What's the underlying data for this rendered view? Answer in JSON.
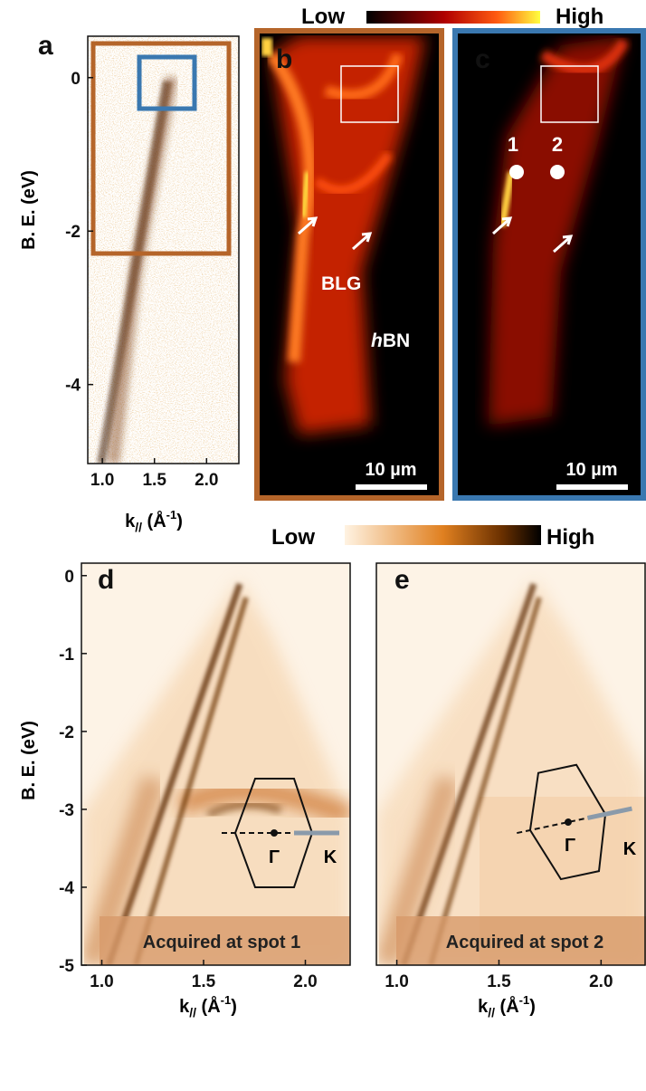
{
  "colorbar_top": {
    "low": "Low",
    "high": "High"
  },
  "colorbar_bottom": {
    "low": "Low",
    "high": "High"
  },
  "panels": {
    "a": {
      "label": "a",
      "ylabel": "B. E. (eV)",
      "xlabel": {
        "k": "k",
        "sub": "//",
        "unit": " (Å",
        "sup": "-1",
        "close": ")"
      },
      "ylim": [
        -5.03,
        0.54
      ],
      "yticks": [
        0,
        -2,
        -4
      ],
      "xlim": [
        0.86,
        2.31
      ],
      "xticks": [
        {
          "value": 1,
          "label": "1.0"
        },
        1.5,
        {
          "value": 2,
          "label": "2.0"
        }
      ]
    },
    "b": {
      "label": "b",
      "blg": "BLG",
      "hbn_italic": "h",
      "hbn": "BN",
      "scalebar": "10 µm"
    },
    "c": {
      "label": "c",
      "spot1": "1",
      "spot2": "2",
      "scalebar": "10 µm"
    },
    "d": {
      "label": "d",
      "ylabel": "B. E. (eV)",
      "xlabel": {
        "k": "k",
        "sub": "//",
        "unit": " (Å",
        "sup": "-1",
        "close": ")"
      },
      "ylim": [
        -5,
        0.16
      ],
      "yticks": [
        0,
        -1,
        -2,
        -3,
        -4,
        -5
      ],
      "xlim": [
        0.9,
        2.22
      ],
      "xticks": [
        {
          "value": 1,
          "label": "1.0"
        },
        1.5,
        {
          "value": 2,
          "label": "2.0"
        }
      ],
      "caption": "Acquired at spot 1",
      "gamma": "Γ",
      "k_point": "K"
    },
    "e": {
      "label": "e",
      "xlabel": {
        "k": "k",
        "sub": "//",
        "unit": " (Å",
        "sup": "-1",
        "close": ")"
      },
      "xlim": [
        0.9,
        2.22
      ],
      "xticks": [
        {
          "value": 1,
          "label": "1.0"
        },
        1.5,
        {
          "value": 2,
          "label": "2.0"
        }
      ],
      "caption": "Acquired at spot 2",
      "gamma": "Γ",
      "k_point": "K"
    }
  }
}
